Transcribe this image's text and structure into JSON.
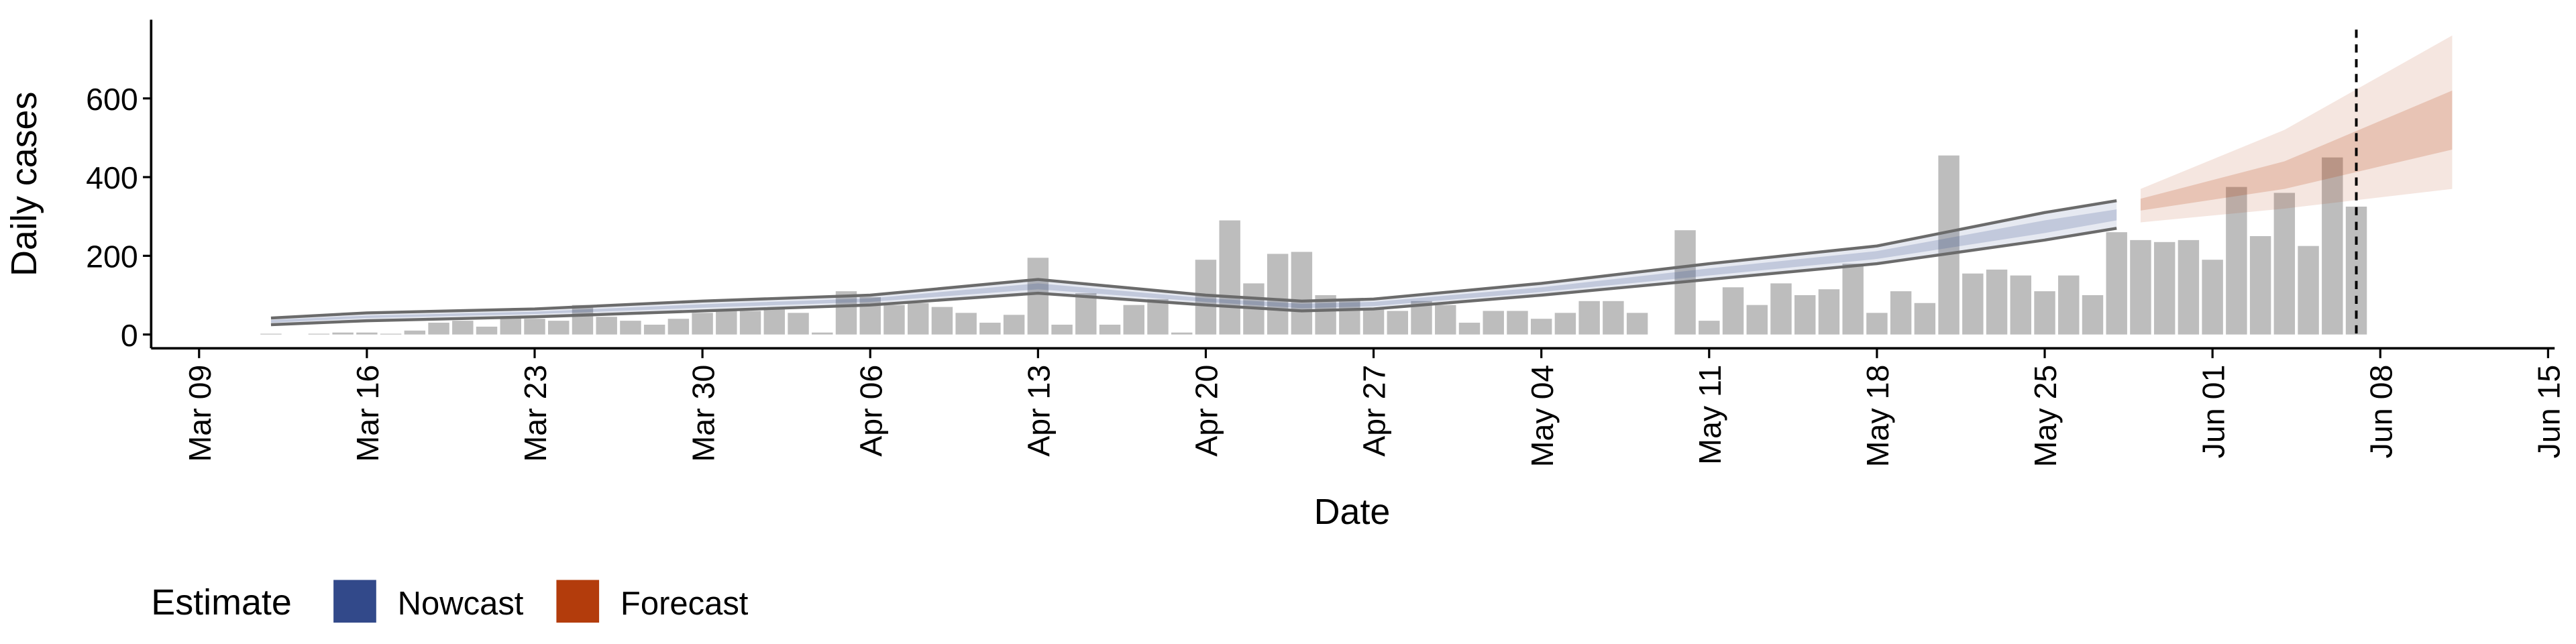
{
  "chart_data": {
    "type": "bar",
    "x_label": "Date",
    "y_label": "Daily cases",
    "x": [
      "03-12",
      "03-13",
      "03-14",
      "03-15",
      "03-16",
      "03-17",
      "03-18",
      "03-19",
      "03-20",
      "03-21",
      "03-22",
      "03-23",
      "03-24",
      "03-25",
      "03-26",
      "03-27",
      "03-28",
      "03-29",
      "03-30",
      "03-31",
      "04-01",
      "04-02",
      "04-03",
      "04-04",
      "04-05",
      "04-06",
      "04-07",
      "04-08",
      "04-09",
      "04-10",
      "04-11",
      "04-12",
      "04-13",
      "04-14",
      "04-15",
      "04-16",
      "04-17",
      "04-18",
      "04-19",
      "04-20",
      "04-21",
      "04-22",
      "04-23",
      "04-24",
      "04-25",
      "04-26",
      "04-27",
      "04-28",
      "04-29",
      "04-30",
      "05-01",
      "05-02",
      "05-03",
      "05-04",
      "05-05",
      "05-06",
      "05-07",
      "05-08",
      "05-09",
      "05-10",
      "05-11",
      "05-12",
      "05-13",
      "05-14",
      "05-15",
      "05-16",
      "05-17",
      "05-18",
      "05-19",
      "05-20",
      "05-21",
      "05-22",
      "05-23",
      "05-24",
      "05-25",
      "05-26",
      "05-27",
      "05-28",
      "05-29",
      "05-30",
      "05-31",
      "06-01",
      "06-02",
      "06-03",
      "06-04",
      "06-05",
      "06-06",
      "06-07"
    ],
    "values": [
      2,
      0,
      2,
      5,
      5,
      2,
      10,
      30,
      35,
      20,
      45,
      40,
      35,
      75,
      45,
      35,
      25,
      40,
      55,
      60,
      60,
      65,
      55,
      5,
      110,
      95,
      75,
      80,
      70,
      55,
      30,
      50,
      195,
      25,
      105,
      25,
      75,
      90,
      5,
      190,
      290,
      130,
      205,
      210,
      100,
      90,
      65,
      60,
      85,
      75,
      30,
      60,
      60,
      40,
      55,
      85,
      85,
      55,
      0,
      265,
      35,
      120,
      75,
      130,
      100,
      115,
      180,
      55,
      110,
      80,
      455,
      155,
      165,
      150,
      110,
      150,
      100,
      260,
      240,
      235,
      240,
      190,
      375,
      250,
      360,
      225,
      450,
      325
    ],
    "color": "#bdbdbd",
    "xlim": [
      "03-07",
      "06-15"
    ],
    "xticks": [
      {
        "value": "03-09",
        "label": "Mar 09"
      },
      {
        "value": "03-16",
        "label": "Mar 16"
      },
      {
        "value": "03-23",
        "label": "Mar 23"
      },
      {
        "value": "03-30",
        "label": "Mar 30"
      },
      {
        "value": "04-06",
        "label": "Apr 06"
      },
      {
        "value": "04-13",
        "label": "Apr 13"
      },
      {
        "value": "04-20",
        "label": "Apr 20"
      },
      {
        "value": "04-27",
        "label": "Apr 27"
      },
      {
        "value": "05-04",
        "label": "May 04"
      },
      {
        "value": "05-11",
        "label": "May 11"
      },
      {
        "value": "05-18",
        "label": "May 18"
      },
      {
        "value": "05-25",
        "label": "May 25"
      },
      {
        "value": "06-01",
        "label": "Jun 01"
      },
      {
        "value": "06-08",
        "label": "Jun 08"
      },
      {
        "value": "06-15",
        "label": "Jun 15"
      }
    ],
    "ylim": [
      -35,
      800
    ],
    "yticks": [
      0,
      200,
      400,
      600
    ],
    "vline": "06-07",
    "legend_title": "Estimate",
    "bands": [
      {
        "name": "Nowcast",
        "color": "#32498a",
        "outline": "#6b6b6b",
        "x": [
          "03-12",
          "03-16",
          "03-23",
          "03-30",
          "04-06",
          "04-13",
          "04-20",
          "04-24",
          "04-27",
          "05-04",
          "05-11",
          "05-18",
          "05-25",
          "05-28"
        ],
        "lower": [
          25,
          35,
          45,
          60,
          75,
          105,
          75,
          60,
          65,
          100,
          140,
          180,
          240,
          270
        ],
        "upper": [
          42,
          55,
          65,
          85,
          100,
          140,
          100,
          85,
          90,
          130,
          180,
          225,
          310,
          340
        ],
        "inner_lower": [
          30,
          42,
          52,
          68,
          83,
          115,
          83,
          67,
          72,
          108,
          150,
          192,
          258,
          290
        ],
        "inner_upper": [
          37,
          48,
          58,
          77,
          92,
          130,
          92,
          78,
          83,
          120,
          168,
          212,
          290,
          318
        ]
      },
      {
        "name": "Forecast",
        "color": "#b33c0c",
        "x": [
          "05-29",
          "06-04",
          "06-11"
        ],
        "lower": [
          285,
          320,
          370
        ],
        "upper": [
          370,
          520,
          760
        ],
        "inner_lower": [
          315,
          370,
          470
        ],
        "inner_upper": [
          345,
          440,
          620
        ]
      }
    ]
  }
}
